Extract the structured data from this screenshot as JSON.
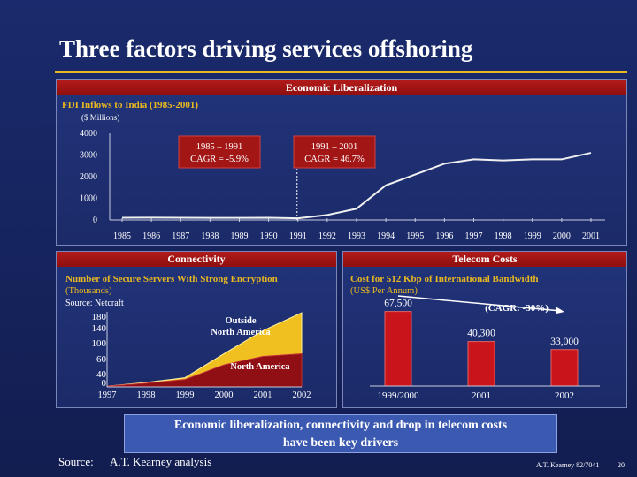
{
  "slide": {
    "title": "Three factors driving services offshoring",
    "conclusion_line1": "Economic liberalization, connectivity and drop in telecom costs",
    "conclusion_line2": "have been key drivers",
    "source_label": "Source:",
    "source_text": "A.T. Kearney analysis",
    "footer": "A.T. Kearney 82/7041",
    "page_number": "20"
  },
  "panels": {
    "liberalization": {
      "header": "Economic Liberalization",
      "subtitle": "FDI Inflows to India (1985-2001)",
      "unit": "($ Millions)"
    },
    "connectivity": {
      "header": "Connectivity",
      "subtitle": "Number of Secure Servers With Strong Encryption",
      "unit": "(Thousands)",
      "source": "Source: Netcraft"
    },
    "telecom": {
      "header": "Telecom Costs",
      "subtitle": "Cost for 512 Kbp of International Bandwidth",
      "unit": "(US$ Per Annum)",
      "cagr": "(CAGR: -30%)"
    }
  },
  "chart_data": [
    {
      "type": "line",
      "title": "FDI Inflows to India (1985-2001)",
      "ylabel": "($ Millions)",
      "x": [
        "1985",
        "1986",
        "1987",
        "1988",
        "1989",
        "1990",
        "1991",
        "1992",
        "1993",
        "1994",
        "1995",
        "1996",
        "1997",
        "1998",
        "1999",
        "2000",
        "2001"
      ],
      "values": [
        100,
        106,
        100,
        95,
        98,
        103,
        75,
        230,
        520,
        1600,
        2100,
        2600,
        2800,
        2750,
        2800,
        2800,
        3100
      ],
      "ylim": [
        0,
        4000
      ],
      "yticks": [
        "0",
        "1000",
        "2000",
        "3000",
        "4000"
      ],
      "annotations": [
        {
          "line1": "1985 – 1991",
          "line2": "CAGR = -5.9%"
        },
        {
          "line1": "1991 – 2001",
          "line2": "CAGR = 46.7%"
        }
      ]
    },
    {
      "type": "area",
      "title": "Number of Secure Servers With Strong Encryption",
      "ylabel": "(Thousands)",
      "x": [
        "1997",
        "1998",
        "1999",
        "2000",
        "2001",
        "2002"
      ],
      "series": [
        {
          "name": "North America",
          "values": [
            2,
            10,
            20,
            60,
            83,
            90
          ]
        },
        {
          "name": "Outside North America",
          "values": [
            0,
            2,
            5,
            30,
            70,
            112
          ]
        }
      ],
      "ylim": [
        0,
        190
      ],
      "yticks": [
        "0",
        "40",
        "60",
        "100",
        "140",
        "180"
      ]
    },
    {
      "type": "bar",
      "title": "Cost for 512 Kbp of International Bandwidth",
      "ylabel": "(US$ Per Annum)",
      "categories": [
        "1999/2000",
        "2001",
        "2002"
      ],
      "values": [
        67500,
        40300,
        33000
      ],
      "labels": [
        "67,500",
        "40,300",
        "33,000"
      ],
      "ylim": [
        0,
        80000
      ],
      "annotation": "(CAGR: -30%)"
    }
  ]
}
